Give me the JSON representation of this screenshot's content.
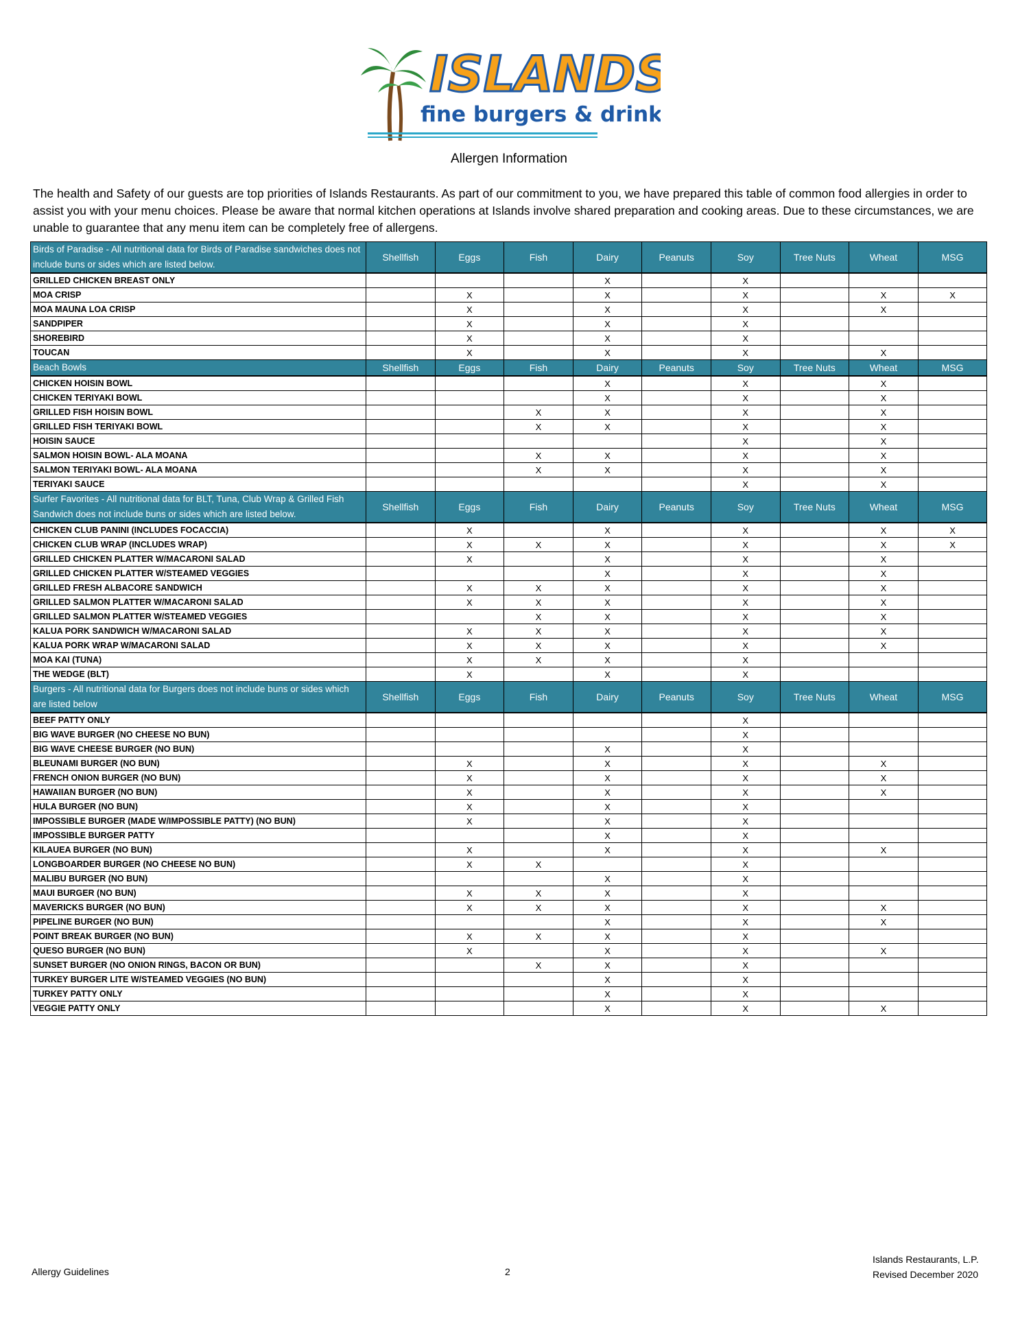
{
  "logo": {
    "brand": "ISLANDS",
    "tagline": "fine burgers & drinks"
  },
  "title": "Allergen Information",
  "intro": "The health and Safety of our guests are top priorities of Islands Restaurants. As part of our commitment to you, we have prepared this table of common food allergies in order to assist you with your menu choices. Please be aware that normal kitchen operations at Islands involve shared preparation and cooking areas. Due to these circumstances, we are unable to guarantee that any menu item can be completely free of allergens.",
  "colors": {
    "header_bg": "#31849B",
    "header_text": "#FFFFFF"
  },
  "allergens": [
    "Shellfish",
    "Eggs",
    "Fish",
    "Dairy",
    "Peanuts",
    "Soy",
    "Tree Nuts",
    "Wheat",
    "MSG"
  ],
  "sections": [
    {
      "title": "Birds of Paradise - All nutritional data for Birds of Paradise sandwiches does not include buns or sides which are listed below.",
      "rows": [
        {
          "name": "GRILLED CHICKEN BREAST ONLY",
          "marks": [
            "",
            "",
            "",
            "X",
            "",
            "X",
            "",
            "",
            ""
          ]
        },
        {
          "name": "MOA CRISP",
          "marks": [
            "",
            "X",
            "",
            "X",
            "",
            "X",
            "",
            "X",
            "X"
          ]
        },
        {
          "name": "MOA MAUNA LOA CRISP",
          "marks": [
            "",
            "X",
            "",
            "X",
            "",
            "X",
            "",
            "X",
            ""
          ]
        },
        {
          "name": "SANDPIPER",
          "marks": [
            "",
            "X",
            "",
            "X",
            "",
            "X",
            "",
            "",
            ""
          ]
        },
        {
          "name": "SHOREBIRD",
          "marks": [
            "",
            "X",
            "",
            "X",
            "",
            "X",
            "",
            "",
            ""
          ]
        },
        {
          "name": "TOUCAN",
          "marks": [
            "",
            "X",
            "",
            "X",
            "",
            "X",
            "",
            "X",
            ""
          ]
        }
      ]
    },
    {
      "title": "Beach Bowls",
      "rows": [
        {
          "name": "CHICKEN HOISIN BOWL",
          "marks": [
            "",
            "",
            "",
            "X",
            "",
            "X",
            "",
            "X",
            ""
          ]
        },
        {
          "name": "CHICKEN TERIYAKI BOWL",
          "marks": [
            "",
            "",
            "",
            "X",
            "",
            "X",
            "",
            "X",
            ""
          ]
        },
        {
          "name": "GRILLED FISH HOISIN BOWL",
          "marks": [
            "",
            "",
            "X",
            "X",
            "",
            "X",
            "",
            "X",
            ""
          ]
        },
        {
          "name": "GRILLED FISH TERIYAKI BOWL",
          "marks": [
            "",
            "",
            "X",
            "X",
            "",
            "X",
            "",
            "X",
            ""
          ]
        },
        {
          "name": "HOISIN SAUCE",
          "marks": [
            "",
            "",
            "",
            "",
            "",
            "X",
            "",
            "X",
            ""
          ]
        },
        {
          "name": "SALMON HOISIN BOWL- ALA MOANA",
          "marks": [
            "",
            "",
            "X",
            "X",
            "",
            "X",
            "",
            "X",
            ""
          ]
        },
        {
          "name": "SALMON TERIYAKI BOWL- ALA MOANA",
          "marks": [
            "",
            "",
            "X",
            "X",
            "",
            "X",
            "",
            "X",
            ""
          ]
        },
        {
          "name": "TERIYAKI SAUCE",
          "marks": [
            "",
            "",
            "",
            "",
            "",
            "X",
            "",
            "X",
            ""
          ]
        }
      ]
    },
    {
      "title": "Surfer Favorites - All nutritional data for BLT, Tuna, Club Wrap & Grilled Fish Sandwich does not include buns or sides which are listed below.",
      "rows": [
        {
          "name": "CHICKEN CLUB PANINI (INCLUDES FOCACCIA)",
          "marks": [
            "",
            "X",
            "",
            "X",
            "",
            "X",
            "",
            "X",
            "X"
          ]
        },
        {
          "name": "CHICKEN CLUB WRAP (INCLUDES WRAP)",
          "marks": [
            "",
            "X",
            "X",
            "X",
            "",
            "X",
            "",
            "X",
            "X"
          ]
        },
        {
          "name": "GRILLED CHICKEN PLATTER W/MACARONI SALAD",
          "marks": [
            "",
            "X",
            "",
            "X",
            "",
            "X",
            "",
            "X",
            ""
          ]
        },
        {
          "name": "GRILLED CHICKEN PLATTER W/STEAMED VEGGIES",
          "marks": [
            "",
            "",
            "",
            "X",
            "",
            "X",
            "",
            "X",
            ""
          ]
        },
        {
          "name": "GRILLED FRESH ALBACORE SANDWICH",
          "marks": [
            "",
            "X",
            "X",
            "X",
            "",
            "X",
            "",
            "X",
            ""
          ]
        },
        {
          "name": "GRILLED SALMON PLATTER W/MACARONI SALAD",
          "marks": [
            "",
            "X",
            "X",
            "X",
            "",
            "X",
            "",
            "X",
            ""
          ]
        },
        {
          "name": "GRILLED SALMON PLATTER W/STEAMED VEGGIES",
          "marks": [
            "",
            "",
            "X",
            "X",
            "",
            "X",
            "",
            "X",
            ""
          ]
        },
        {
          "name": "KALUA PORK SANDWICH W/MACARONI SALAD",
          "marks": [
            "",
            "X",
            "X",
            "X",
            "",
            "X",
            "",
            "X",
            ""
          ]
        },
        {
          "name": "KALUA PORK WRAP W/MACARONI SALAD",
          "marks": [
            "",
            "X",
            "X",
            "X",
            "",
            "X",
            "",
            "X",
            ""
          ]
        },
        {
          "name": "MOA KAI (TUNA)",
          "marks": [
            "",
            "X",
            "X",
            "X",
            "",
            "X",
            "",
            "",
            ""
          ]
        },
        {
          "name": "THE WEDGE (BLT)",
          "marks": [
            "",
            "X",
            "",
            "X",
            "",
            "X",
            "",
            "",
            ""
          ]
        }
      ]
    },
    {
      "title": "Burgers - All nutritional data for Burgers does not include buns or sides which are listed below",
      "rows": [
        {
          "name": "BEEF PATTY ONLY",
          "marks": [
            "",
            "",
            "",
            "",
            "",
            "X",
            "",
            "",
            ""
          ]
        },
        {
          "name": "BIG WAVE BURGER (NO CHEESE NO BUN)",
          "marks": [
            "",
            "",
            "",
            "",
            "",
            "X",
            "",
            "",
            ""
          ]
        },
        {
          "name": "BIG WAVE CHEESE BURGER (NO BUN)",
          "marks": [
            "",
            "",
            "",
            "X",
            "",
            "X",
            "",
            "",
            ""
          ]
        },
        {
          "name": "BLEUNAMI BURGER (NO BUN)",
          "marks": [
            "",
            "X",
            "",
            "X",
            "",
            "X",
            "",
            "X",
            ""
          ]
        },
        {
          "name": "FRENCH ONION BURGER (NO BUN)",
          "marks": [
            "",
            "X",
            "",
            "X",
            "",
            "X",
            "",
            "X",
            ""
          ]
        },
        {
          "name": "HAWAIIAN BURGER (NO BUN)",
          "marks": [
            "",
            "X",
            "",
            "X",
            "",
            "X",
            "",
            "X",
            ""
          ]
        },
        {
          "name": "HULA BURGER (NO BUN)",
          "marks": [
            "",
            "X",
            "",
            "X",
            "",
            "X",
            "",
            "",
            ""
          ]
        },
        {
          "name": "IMPOSSIBLE BURGER (MADE W/IMPOSSIBLE PATTY) (NO BUN)",
          "marks": [
            "",
            "X",
            "",
            "X",
            "",
            "X",
            "",
            "",
            ""
          ]
        },
        {
          "name": "IMPOSSIBLE BURGER PATTY",
          "marks": [
            "",
            "",
            "",
            "X",
            "",
            "X",
            "",
            "",
            ""
          ]
        },
        {
          "name": "KILAUEA BURGER (NO BUN)",
          "marks": [
            "",
            "X",
            "",
            "X",
            "",
            "X",
            "",
            "X",
            ""
          ]
        },
        {
          "name": "LONGBOARDER BURGER (NO CHEESE NO BUN)",
          "marks": [
            "",
            "X",
            "X",
            "",
            "",
            "X",
            "",
            "",
            ""
          ]
        },
        {
          "name": "MALIBU BURGER (NO BUN)",
          "marks": [
            "",
            "",
            "",
            "X",
            "",
            "X",
            "",
            "",
            ""
          ]
        },
        {
          "name": "MAUI BURGER (NO BUN)",
          "marks": [
            "",
            "X",
            "X",
            "X",
            "",
            "X",
            "",
            "",
            ""
          ]
        },
        {
          "name": "MAVERICKS BURGER (NO BUN)",
          "marks": [
            "",
            "X",
            "X",
            "X",
            "",
            "X",
            "",
            "X",
            ""
          ]
        },
        {
          "name": "PIPELINE BURGER (NO BUN)",
          "marks": [
            "",
            "",
            "",
            "X",
            "",
            "X",
            "",
            "X",
            ""
          ]
        },
        {
          "name": "POINT BREAK BURGER (NO BUN)",
          "marks": [
            "",
            "X",
            "X",
            "X",
            "",
            "X",
            "",
            "",
            ""
          ]
        },
        {
          "name": "QUESO BURGER (NO BUN)",
          "marks": [
            "",
            "X",
            "",
            "X",
            "",
            "X",
            "",
            "X",
            ""
          ]
        },
        {
          "name": "SUNSET BURGER (NO ONION RINGS, BACON OR BUN)",
          "marks": [
            "",
            "",
            "X",
            "X",
            "",
            "X",
            "",
            "",
            ""
          ]
        },
        {
          "name": "TURKEY BURGER LITE W/STEAMED VEGGIES (NO BUN)",
          "marks": [
            "",
            "",
            "",
            "X",
            "",
            "X",
            "",
            "",
            ""
          ]
        },
        {
          "name": "TURKEY PATTY ONLY",
          "marks": [
            "",
            "",
            "",
            "X",
            "",
            "X",
            "",
            "",
            ""
          ]
        },
        {
          "name": "VEGGIE PATTY ONLY",
          "marks": [
            "",
            "",
            "",
            "X",
            "",
            "X",
            "",
            "X",
            ""
          ]
        }
      ]
    }
  ],
  "footer": {
    "left": "Allergy Guidelines",
    "page": "2",
    "company": "Islands Restaurants, L.P.",
    "revised": "Revised December 2020"
  }
}
